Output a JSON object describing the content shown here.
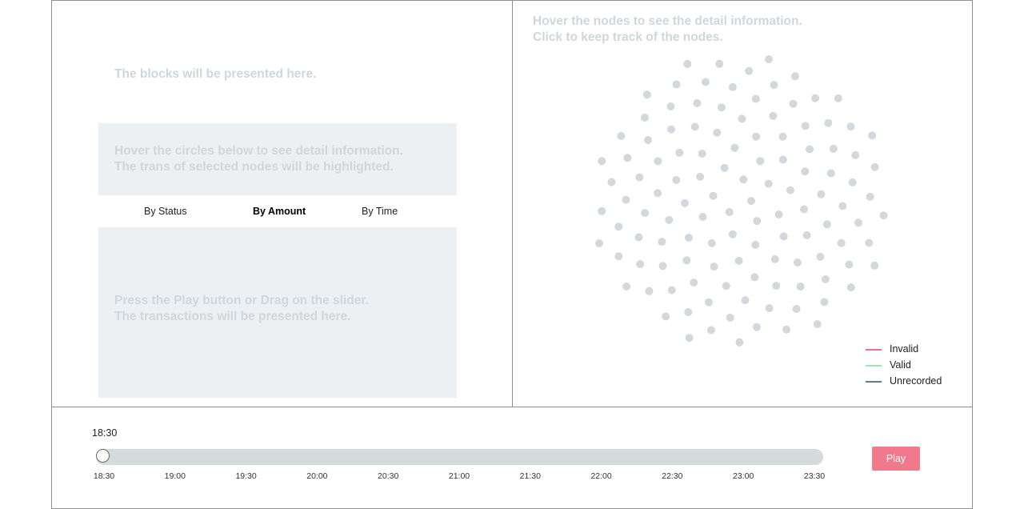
{
  "blocks": {
    "placeholder": "The blocks will be presented here."
  },
  "detail": {
    "line1": "Hover the circles below to see detail information.",
    "line2": "The trans of selected nodes will be highlighted."
  },
  "tabs": [
    {
      "label": "By Status",
      "active": false
    },
    {
      "label": "By Amount",
      "active": true
    },
    {
      "label": "By Time",
      "active": false
    }
  ],
  "transactions": {
    "line1": "Press the Play button or Drag on the slider.",
    "line2": "The transactions will be presented here."
  },
  "nodes": {
    "line1": "Hover the nodes to see the detail information.",
    "line2": "Click to keep track of the nodes.",
    "node_color": "#d2d8dc"
  },
  "legend": [
    {
      "label": "Invalid",
      "color": "#e8738a"
    },
    {
      "label": "Valid",
      "color": "#9ce6a8"
    },
    {
      "label": "Unrecorded",
      "color": "#5c7a99"
    }
  ],
  "timeline": {
    "current_time": "18:30",
    "progress": 0,
    "ticks": [
      "18:30",
      "19:00",
      "19:30",
      "20:00",
      "20:30",
      "21:00",
      "21:30",
      "22:00",
      "22:30",
      "23:00",
      "23:30"
    ],
    "play_label": "Play",
    "play_color": "#f07a8b"
  }
}
